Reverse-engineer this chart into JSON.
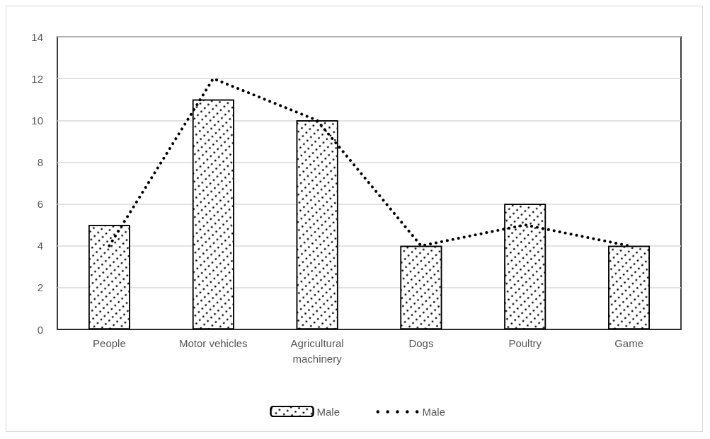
{
  "chart_data": {
    "type": "bar",
    "categories": [
      "People",
      "Motor vehicles",
      "Agricultural\nmachinery",
      "Dogs",
      "Poultry",
      "Game"
    ],
    "series": [
      {
        "name": "Male",
        "color": "#000000",
        "values": [
          5,
          11,
          10,
          4,
          6,
          4
        ]
      },
      {
        "name": "Male",
        "type": "line",
        "color": "#000000",
        "line_style": "dotted",
        "marker": "none",
        "values": [
          4,
          12,
          10,
          4,
          5,
          4
        ]
      }
    ],
    "ylim": [
      0,
      14
    ],
    "yticks": [
      0,
      2,
      4,
      6,
      8,
      10,
      12,
      14
    ],
    "grid": "y",
    "legend": "bottom"
  }
}
